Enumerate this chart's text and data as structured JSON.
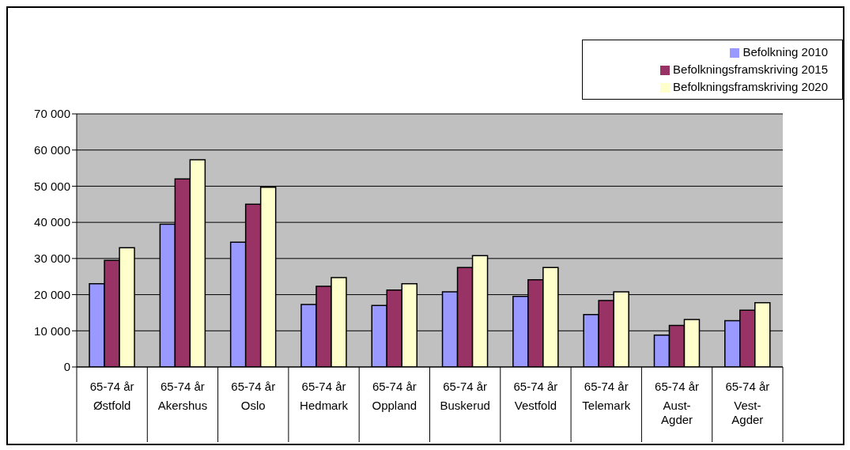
{
  "chart_data": {
    "type": "bar",
    "categories": [
      "65-74 år\nØstfold",
      "65-74 år\nAkershus",
      "65-74 år\nOslo",
      "65-74 år\nHedmark",
      "65-74 år\nOppland",
      "65-74 år\nBuskerud",
      "65-74 år\nVestfold",
      "65-74 år\nTelemark",
      "65-74 år\nAust-Agder",
      "65-74 år\nVest-Agder"
    ],
    "series": [
      {
        "name": "Befolkning 2010",
        "color": "#9999ff",
        "values": [
          23000,
          39500,
          34500,
          17300,
          17000,
          20800,
          19500,
          14500,
          8800,
          12800
        ]
      },
      {
        "name": "Befolkningsframskriving 2015",
        "color": "#993366",
        "values": [
          29500,
          52000,
          45000,
          22300,
          21300,
          27500,
          24100,
          18400,
          11500,
          15700
        ]
      },
      {
        "name": "Befolkningsframskriving 2020",
        "color": "#ffffcc",
        "values": [
          33000,
          57300,
          49700,
          24700,
          23000,
          30800,
          27500,
          20800,
          13100,
          17800
        ]
      }
    ],
    "ylim": [
      0,
      70000
    ],
    "yticks": [
      0,
      10000,
      20000,
      30000,
      40000,
      50000,
      60000,
      70000
    ],
    "grid": "y",
    "legend": "top right"
  }
}
